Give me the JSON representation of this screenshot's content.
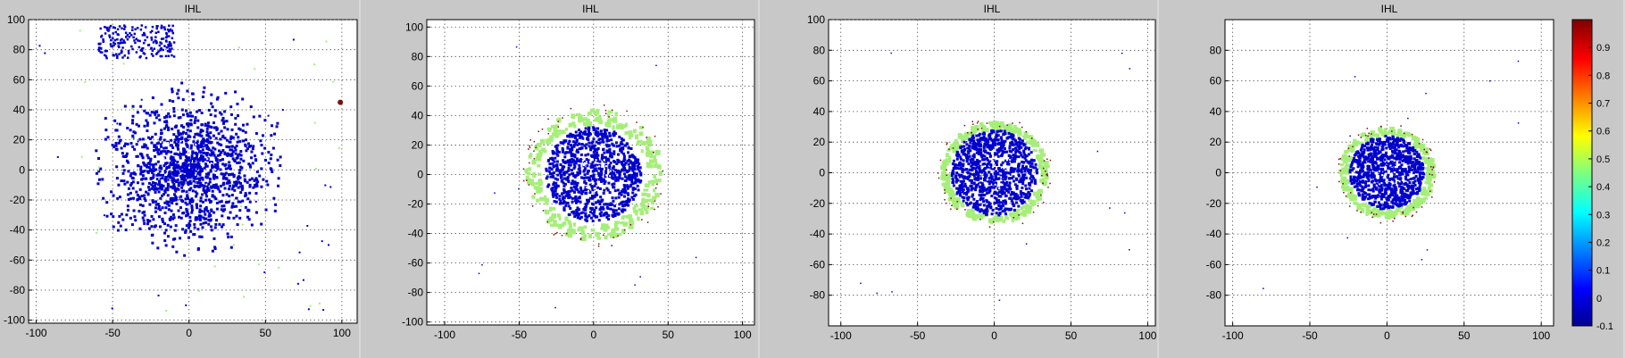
{
  "figure": {
    "colorbar": {
      "ticks": [
        0.9,
        0.8,
        0.7,
        0.6,
        0.5,
        0.4,
        0.3,
        0.2,
        0.1,
        0,
        -0.1
      ],
      "range": [
        -0.1,
        1.0
      ],
      "colormap": "jet"
    },
    "background_color": "#c8c8c8",
    "point_color": "#0000cc",
    "ring_color": "#a6ee7a",
    "edge_color": "#7a1010"
  },
  "chart_data": [
    {
      "type": "scatter",
      "title": "IHL",
      "xlim": [
        -105,
        110
      ],
      "ylim": [
        -102,
        100
      ],
      "xticks": [
        -100,
        -50,
        0,
        50,
        100
      ],
      "yticks": [
        100,
        80,
        60,
        40,
        20,
        0,
        -20,
        -40,
        -60,
        -80,
        -100
      ],
      "grid": true,
      "core_radius": 58,
      "ring_radius": 0,
      "note_extra": "wide scattered cloud"
    },
    {
      "type": "scatter",
      "title": "IHL",
      "xlim": [
        -112,
        108
      ],
      "ylim": [
        -102,
        105
      ],
      "xticks": [
        -100,
        -50,
        0,
        50,
        100
      ],
      "yticks": [
        100,
        80,
        60,
        40,
        20,
        0,
        -20,
        -40,
        -60,
        -80,
        -100
      ],
      "grid": true,
      "core_radius": 32,
      "ring_radius": 45
    },
    {
      "type": "scatter",
      "title": "IHL",
      "xlim": [
        -108,
        105
      ],
      "ylim": [
        -100,
        100
      ],
      "xticks": [
        -100,
        -50,
        0,
        50,
        100
      ],
      "yticks": [
        100,
        80,
        60,
        40,
        20,
        0,
        -20,
        -40,
        -60,
        -80
      ],
      "grid": true,
      "core_radius": 28,
      "ring_radius": 34
    },
    {
      "type": "scatter",
      "title": "IHL",
      "xlim": [
        -105,
        108
      ],
      "ylim": [
        -100,
        100
      ],
      "xticks": [
        -100,
        -50,
        0,
        50,
        100
      ],
      "yticks": [
        80,
        60,
        40,
        20,
        0,
        -20,
        -40,
        -60,
        -80
      ],
      "grid": true,
      "core_radius": 24,
      "ring_radius": 30
    }
  ]
}
